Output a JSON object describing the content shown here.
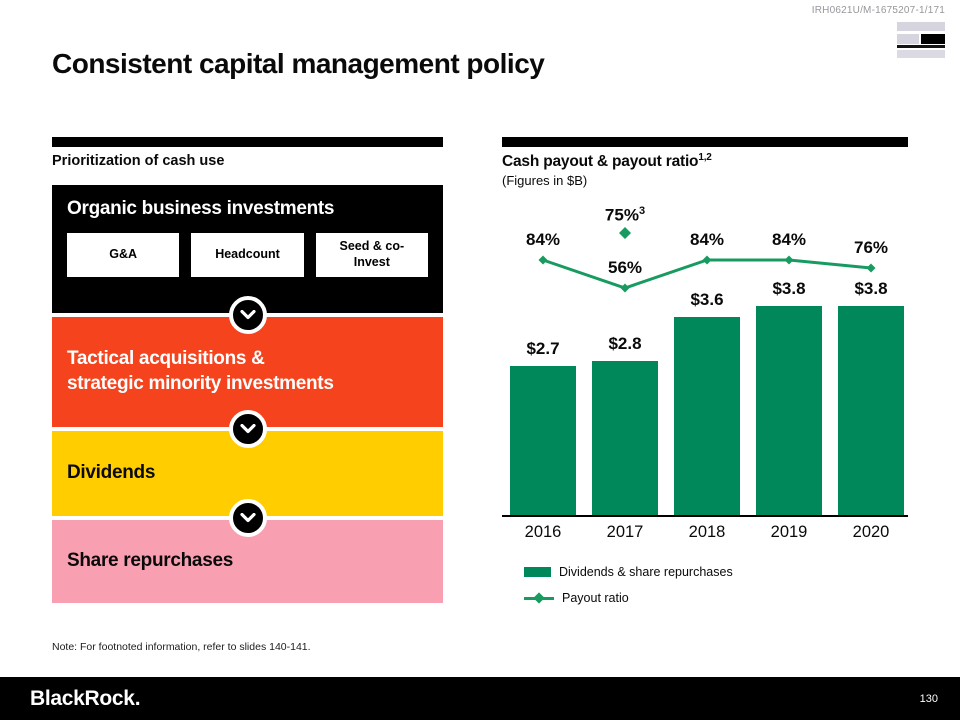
{
  "header": {
    "doc_id": "IRH0621U/M-1675207-1/171",
    "title": "Consistent capital management policy"
  },
  "left_panel": {
    "heading": "Prioritization of cash use",
    "stage_organic": {
      "label": "Organic business investments",
      "items": [
        "G&A",
        "Headcount",
        "Seed & co-Invest"
      ]
    },
    "stage_tactical": {
      "label_lines": [
        "Tactical acquisitions &",
        "strategic minority investments"
      ]
    },
    "stage_dividends": {
      "label": "Dividends"
    },
    "stage_repurchases": {
      "label": "Share repurchases"
    }
  },
  "right_panel": {
    "heading": "Cash payout & payout ratio",
    "heading_superscript": "1,2",
    "subheading": "(Figures in $B)"
  },
  "chart_data": {
    "type": "bar",
    "categories": [
      "2016",
      "2017",
      "2018",
      "2019",
      "2020"
    ],
    "series": [
      {
        "name": "Dividends & share repurchases",
        "type": "bar",
        "values": [
          2.7,
          2.8,
          3.6,
          3.8,
          3.8
        ],
        "labels": [
          "$2.7",
          "$2.8",
          "$3.6",
          "$3.8",
          "$3.8"
        ],
        "color": "#00885B"
      },
      {
        "name": "Payout ratio",
        "type": "line",
        "values": [
          84,
          56,
          84,
          84,
          76
        ],
        "labels": [
          "84%",
          "56%",
          "84%",
          "84%",
          "76%"
        ],
        "color": "#189B60"
      }
    ],
    "annotation": {
      "category": "2017",
      "label": "75%",
      "superscript": "3"
    },
    "title": "Cash payout & payout ratio",
    "units": "$B",
    "xlabel": "",
    "ylabel": "",
    "legend_position": "bottom"
  },
  "note": "Note: For footnoted information, refer to slides 140-141.",
  "footer": {
    "brand": "BlackRock.",
    "page_number": "130"
  }
}
